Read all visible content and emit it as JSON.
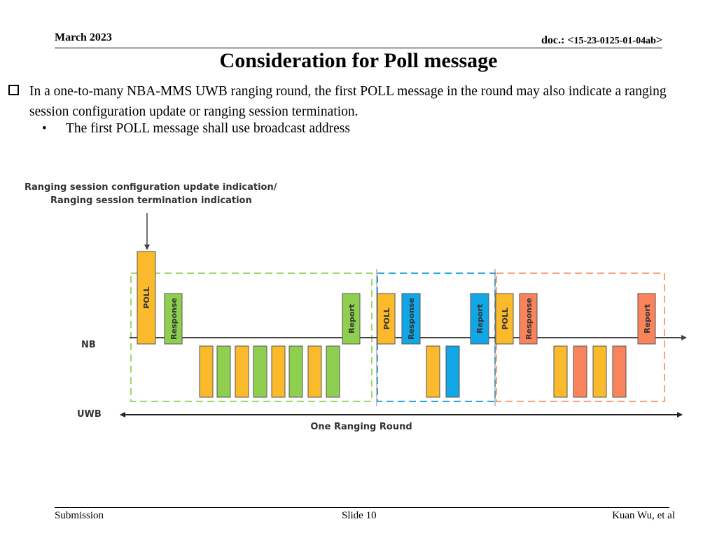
{
  "header": {
    "date": "March 2023",
    "doc_prefix": "doc.: <",
    "doc_number": "15-23-0125-01-04ab",
    "doc_suffix": ">"
  },
  "title": "Consideration for Poll message",
  "body": {
    "bullet": "In a one-to-many NBA-MMS UWB ranging round, the first POLL message in the round may also indicate a ranging session configuration update or ranging session termination.",
    "sub_bullet": "The first POLL message shall use broadcast address"
  },
  "diagram": {
    "indication_line1": "Ranging session configuration update indication/",
    "indication_line2": "Ranging session termination indication",
    "nb_label": "NB",
    "uwb_label": "UWB",
    "round_label": "One Ranging Round",
    "msg_poll": "POLL",
    "msg_response": "Response",
    "msg_report": "Report",
    "colors": {
      "orange": "#FBBA2C",
      "green": "#8ECF4F",
      "blue": "#11A7E6",
      "salmon": "#F9845C",
      "green_dash": "#9ED86B",
      "blue_dash": "#27A8DE",
      "salmon_dash": "#F9A07C"
    }
  },
  "footer": {
    "left": "Submission",
    "center": "Slide 10",
    "right": "Kuan Wu, et al"
  }
}
